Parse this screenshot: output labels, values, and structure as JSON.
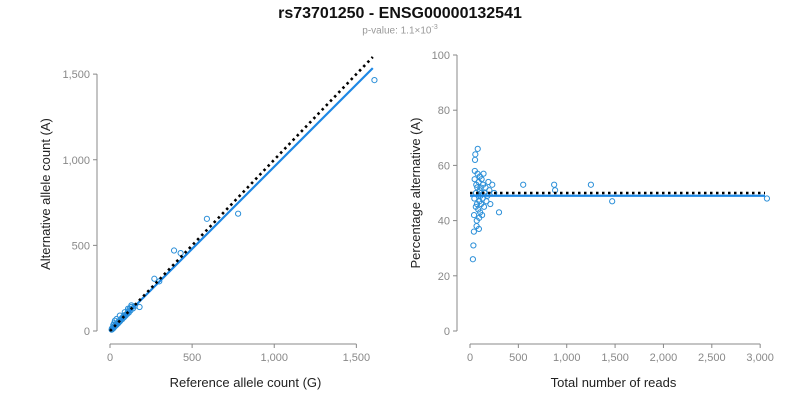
{
  "title": "rs73701250 - ENSG00000132541",
  "subtitle": {
    "prefix": "p-value: 1.1×10",
    "exponent": "-3"
  },
  "colors": {
    "points": "#2b8fd8",
    "fit_line": "#1e88e5",
    "expected_line": "#000000",
    "axis": "#888888"
  },
  "chart_data": [
    {
      "type": "scatter",
      "xlabel": "Reference allele count (G)",
      "ylabel": "Alternative allele count (A)",
      "xlim": [
        0,
        1650
      ],
      "ylim": [
        0,
        1600
      ],
      "xticks": [
        0,
        500,
        1000,
        1500
      ],
      "xtick_labels": [
        "0",
        "500",
        "1,000",
        "1,500"
      ],
      "yticks": [
        0,
        500,
        1000,
        1500
      ],
      "ytick_labels": [
        "0",
        "500",
        "1,000",
        "1,500"
      ],
      "grid": false,
      "points": [
        [
          10,
          8
        ],
        [
          12,
          15
        ],
        [
          15,
          12
        ],
        [
          18,
          20
        ],
        [
          20,
          16
        ],
        [
          22,
          25
        ],
        [
          25,
          22
        ],
        [
          28,
          30
        ],
        [
          30,
          28
        ],
        [
          32,
          35
        ],
        [
          35,
          32
        ],
        [
          38,
          40
        ],
        [
          40,
          36
        ],
        [
          42,
          45
        ],
        [
          45,
          42
        ],
        [
          48,
          50
        ],
        [
          50,
          46
        ],
        [
          52,
          55
        ],
        [
          55,
          52
        ],
        [
          58,
          60
        ],
        [
          60,
          56
        ],
        [
          65,
          62
        ],
        [
          70,
          68
        ],
        [
          72,
          75
        ],
        [
          75,
          70
        ],
        [
          80,
          78
        ],
        [
          82,
          85
        ],
        [
          85,
          80
        ],
        [
          88,
          92
        ],
        [
          90,
          86
        ],
        [
          95,
          90
        ],
        [
          100,
          98
        ],
        [
          105,
          100
        ],
        [
          110,
          115
        ],
        [
          115,
          108
        ],
        [
          120,
          130
        ],
        [
          125,
          120
        ],
        [
          130,
          140
        ],
        [
          140,
          132
        ],
        [
          150,
          145
        ],
        [
          20,
          35
        ],
        [
          25,
          45
        ],
        [
          30,
          60
        ],
        [
          40,
          70
        ],
        [
          60,
          90
        ],
        [
          90,
          110
        ],
        [
          110,
          130
        ],
        [
          130,
          150
        ],
        [
          180,
          140
        ],
        [
          270,
          305
        ],
        [
          300,
          290
        ],
        [
          390,
          470
        ],
        [
          430,
          455
        ],
        [
          590,
          655
        ],
        [
          780,
          685
        ],
        [
          1610,
          1465
        ]
      ],
      "series": [
        {
          "kind": "fit",
          "x": [
            0,
            1600
          ],
          "y": [
            0,
            1535
          ]
        },
        {
          "kind": "expected",
          "x": [
            0,
            1600
          ],
          "y": [
            0,
            1600
          ]
        }
      ]
    },
    {
      "type": "scatter",
      "xlabel": "Total number of reads",
      "ylabel": "Percentage alternative (A)",
      "xlim": [
        0,
        3050
      ],
      "ylim": [
        0,
        100
      ],
      "xticks": [
        0,
        500,
        1000,
        1500,
        2000,
        2500,
        3000
      ],
      "xtick_labels": [
        "0",
        "500",
        "1,000",
        "1,500",
        "2,000",
        "2,500",
        "3,000"
      ],
      "yticks": [
        0,
        20,
        40,
        60,
        80,
        100
      ],
      "ytick_labels": [
        "0",
        "20",
        "40",
        "60",
        "80",
        "100"
      ],
      "grid": false,
      "points": [
        [
          30,
          26
        ],
        [
          35,
          31
        ],
        [
          40,
          36
        ],
        [
          42,
          42
        ],
        [
          45,
          48
        ],
        [
          48,
          55
        ],
        [
          50,
          58
        ],
        [
          52,
          62
        ],
        [
          55,
          64
        ],
        [
          60,
          45
        ],
        [
          62,
          50
        ],
        [
          65,
          53
        ],
        [
          68,
          38
        ],
        [
          70,
          40
        ],
        [
          72,
          46
        ],
        [
          75,
          52
        ],
        [
          78,
          57
        ],
        [
          80,
          66
        ],
        [
          85,
          44
        ],
        [
          88,
          49
        ],
        [
          90,
          54
        ],
        [
          92,
          37
        ],
        [
          95,
          41
        ],
        [
          98,
          47
        ],
        [
          100,
          51
        ],
        [
          102,
          56
        ],
        [
          105,
          43
        ],
        [
          108,
          49
        ],
        [
          110,
          52
        ],
        [
          115,
          46
        ],
        [
          118,
          50
        ],
        [
          120,
          55
        ],
        [
          125,
          42
        ],
        [
          130,
          48
        ],
        [
          135,
          53
        ],
        [
          140,
          57
        ],
        [
          145,
          45
        ],
        [
          150,
          50
        ],
        [
          160,
          52
        ],
        [
          170,
          47
        ],
        [
          180,
          49
        ],
        [
          190,
          54
        ],
        [
          200,
          51
        ],
        [
          210,
          46
        ],
        [
          230,
          53
        ],
        [
          250,
          50
        ],
        [
          300,
          43
        ],
        [
          550,
          53
        ],
        [
          870,
          53
        ],
        [
          880,
          51
        ],
        [
          1250,
          53
        ],
        [
          1470,
          47
        ],
        [
          3070,
          48
        ]
      ],
      "series": [
        {
          "kind": "fit",
          "x": [
            0,
            3050
          ],
          "y": [
            49,
            49
          ]
        },
        {
          "kind": "expected",
          "x": [
            0,
            3050
          ],
          "y": [
            50,
            50
          ]
        }
      ]
    }
  ]
}
